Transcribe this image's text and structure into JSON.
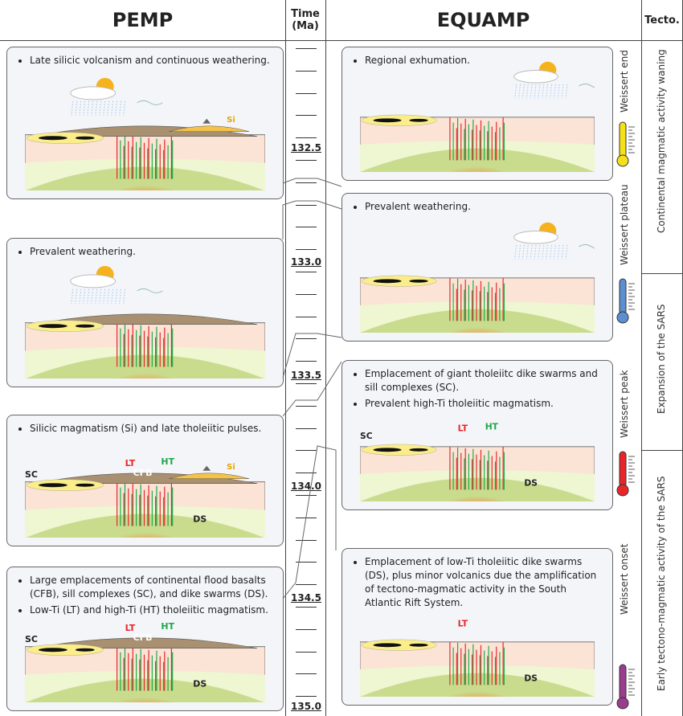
{
  "headers": {
    "pemp": "PEMP",
    "time": "Time\n(Ma)",
    "equamp": "EQUAMP",
    "tecto": "Tecto."
  },
  "time_labels": [
    "132.5",
    "133.0",
    "133.5",
    "134.0",
    "134.5",
    "135.0"
  ],
  "tecto": [
    "Continental magmatic activity waning",
    "Expansion of the SARS",
    "Early tectono-magmatic activity of the SARS"
  ],
  "weissert": [
    {
      "label": "Weissert end",
      "color": "#f5e11a"
    },
    {
      "label": "Weissert plateau",
      "color": "#5b8fd0"
    },
    {
      "label": "Weissert peak",
      "color": "#e8262a"
    },
    {
      "label": "Weissert onset",
      "color": "#9b3d8e"
    }
  ],
  "pemp": [
    {
      "bullets": [
        "Late silicic volcanism and continuous weathering."
      ],
      "labels": {
        "si": "Si"
      }
    },
    {
      "bullets": [
        "Prevalent weathering."
      ],
      "labels": {}
    },
    {
      "bullets": [
        "Silicic magmatism (Si) and late tholeiitic pulses."
      ],
      "labels": {
        "lt": "LT",
        "ht": "HT",
        "si": "Si",
        "sc": "SC",
        "cfb": "CFB",
        "ds": "DS"
      }
    },
    {
      "bullets": [
        "Large emplacements of continental flood basalts (CFB), sill complexes (SC), and dike swarms (DS).",
        "Low-Ti (LT) and high-Ti (HT) tholeiitic magmatism."
      ],
      "labels": {
        "lt": "LT",
        "ht": "HT",
        "sc": "SC",
        "cfb": "CFB",
        "ds": "DS"
      }
    }
  ],
  "equamp": [
    {
      "bullets": [
        "Regional exhumation."
      ],
      "labels": {}
    },
    {
      "bullets": [
        "Prevalent weathering."
      ],
      "labels": {}
    },
    {
      "bullets": [
        "Emplacement of giant tholeiitc dike swarms and sill complexes (SC).",
        "Prevalent high-Ti tholeiitic magmatism."
      ],
      "labels": {
        "lt": "LT",
        "ht": "HT",
        "sc": "SC",
        "ds": "DS"
      }
    },
    {
      "bullets": [
        "Emplacement of low-Ti tholeiitic dike swarms (DS), plus minor volcanics due the amplification of tectono-magmatic activity in the South Atlantic Rift System."
      ],
      "labels": {
        "lt": "LT",
        "ds": "DS"
      }
    }
  ],
  "colors": {
    "lt": "#e8262a",
    "ht": "#1ea84b",
    "si": "#e8a400",
    "crust": "#fbe3d6",
    "lower": "#eef6d2",
    "mantle": "#c9dc8e",
    "cfb": "#a89070",
    "sill": "#fbee8a"
  }
}
